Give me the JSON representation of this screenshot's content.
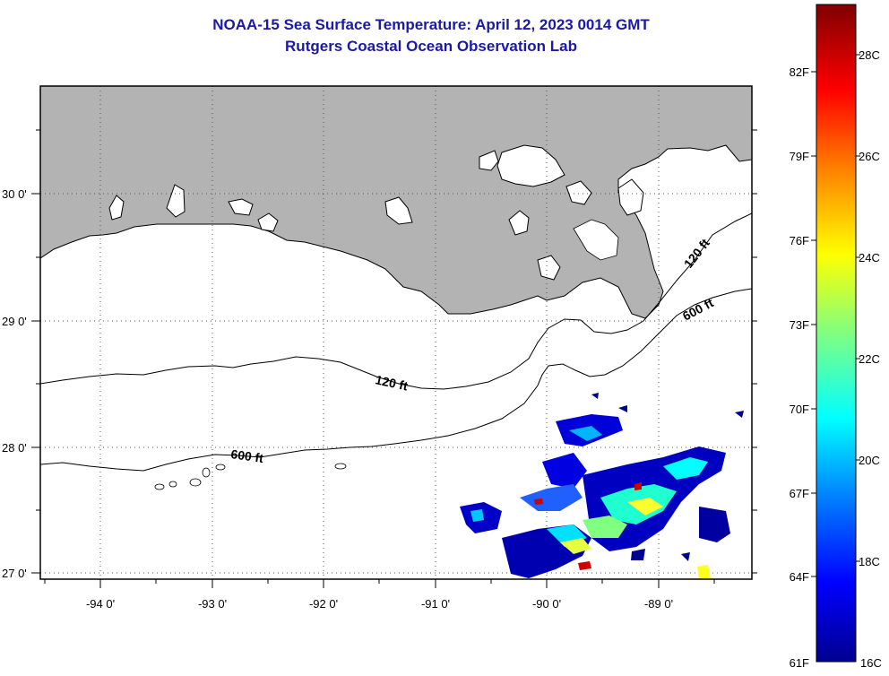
{
  "header": {
    "title": "NOAA-15 Sea Surface Temperature:  April 12, 2023 0014 GMT",
    "subtitle": "Rutgers Coastal Ocean Observation Lab"
  },
  "map": {
    "lon_labels": [
      "-94 0'",
      "-93 0'",
      "-92 0'",
      "-91 0'",
      "-90 0'",
      "-89 0'"
    ],
    "lat_labels": [
      "30 0'",
      "29 0'",
      "28 0'",
      "27 0'"
    ],
    "contour_labels": [
      "120 ft",
      "120 ft",
      "600 ft",
      "600 ft"
    ],
    "colors": {
      "land": "#b3b3b3",
      "coast": "#000000",
      "grid": "#555555"
    }
  },
  "colorbar": {
    "fahrenheit_labels": [
      "82F",
      "79F",
      "76F",
      "73F",
      "70F",
      "67F",
      "64F",
      "61F"
    ],
    "celsius_labels": [
      "28C",
      "26C",
      "24C",
      "22C",
      "20C",
      "18C",
      "16C"
    ],
    "colormap": "jet",
    "colors": [
      "#00008f",
      "#0000ff",
      "#0080ff",
      "#00ffff",
      "#80ff80",
      "#ffff00",
      "#ff8000",
      "#ff0000",
      "#800000"
    ]
  }
}
